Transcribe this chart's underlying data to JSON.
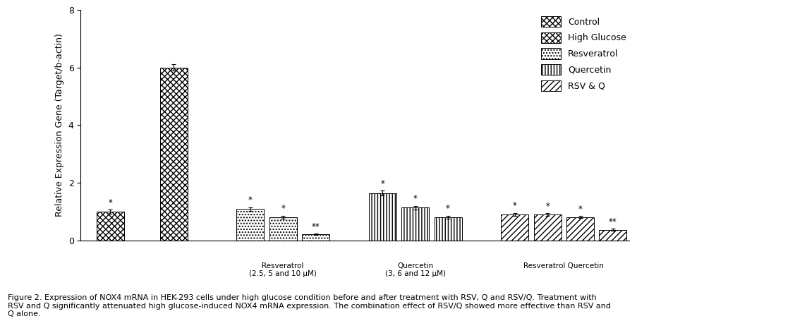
{
  "ylabel": "Relative Expression Gene (Target/b-actin)",
  "ylim": [
    0,
    8
  ],
  "yticks": [
    0,
    2,
    4,
    6,
    8
  ],
  "bar_values": [
    1.0,
    6.0,
    1.1,
    0.82,
    0.22,
    1.65,
    1.15,
    0.82,
    0.92,
    0.9,
    0.82,
    0.38
  ],
  "bar_errors": [
    0.07,
    0.12,
    0.06,
    0.05,
    0.03,
    0.09,
    0.06,
    0.05,
    0.05,
    0.05,
    0.04,
    0.03
  ],
  "significance": [
    "*",
    "",
    "*",
    "*",
    "**",
    "*",
    "*",
    "*",
    "*",
    "*",
    "*",
    "**"
  ],
  "group_labels": [
    "Resveratrol\n(2.5, 5 and 10 μM)",
    "Quercetin\n(3, 6 and 12 μM)",
    "Resveratrol Quercetin"
  ],
  "legend_labels": [
    "Control",
    "High Glucose",
    "Resveratrol",
    "Quercetin",
    "RSV & Q"
  ],
  "background_color": "white",
  "figure_width": 11.44,
  "figure_height": 4.55,
  "fontsize_ylabel": 9,
  "fontsize_ticks": 9,
  "fontsize_legend": 9,
  "fontsize_caption": 8,
  "caption": "Figure 2. Expression of NOX4 mRNA in HEK-293 cells under high glucose condition before and after treatment with RSV, Q and RSV/Q. Treatment with RSV and Q significantly attenuated high glucose-induced NOX4 mRNA expression. The combination effect of RSV/Q showed more effective than RSV and Q alone."
}
